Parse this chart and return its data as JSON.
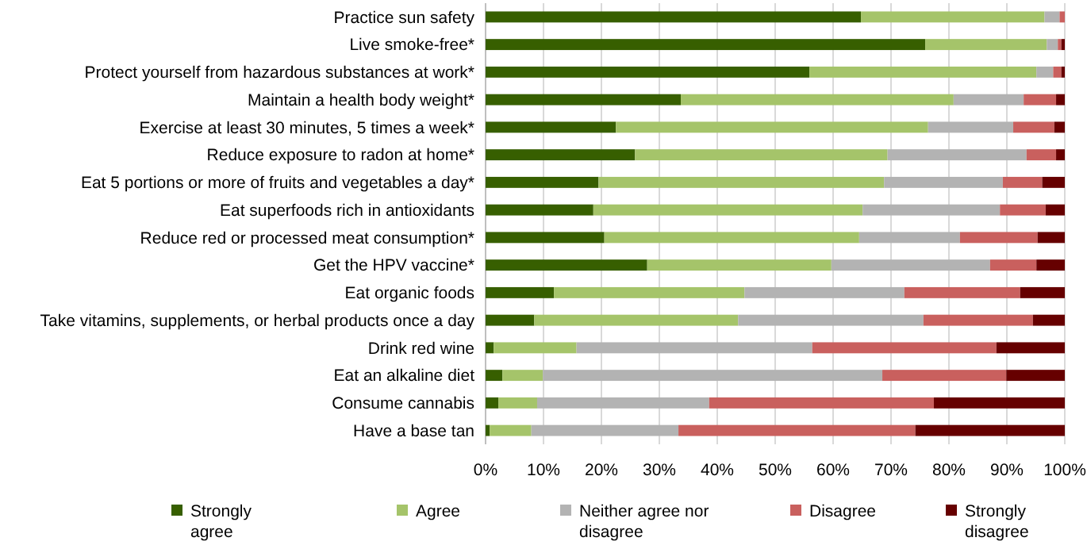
{
  "chart_data": {
    "type": "bar",
    "orientation": "horizontal",
    "stacked": true,
    "categories": [
      "Practice sun safety",
      "Live smoke-free*",
      "Protect yourself from hazardous substances at work*",
      "Maintain a health body weight*",
      "Exercise at least 30 minutes, 5 times a week*",
      "Reduce exposure to radon at home*",
      "Eat 5 portions or more of fruits and vegetables a day*",
      "Eat superfoods rich in antioxidants",
      "Reduce red or processed meat consumption*",
      "Get the HPV vaccine*",
      "Eat organic foods",
      "Take vitamins, supplements, or herbal products once a day",
      "Drink red wine",
      "Eat an alkaline diet",
      "Consume cannabis",
      "Have a base tan"
    ],
    "series": [
      {
        "name": "Strongly agree",
        "color": "#375f00",
        "values": [
          64.8,
          75.9,
          55.9,
          33.7,
          22.5,
          25.8,
          19.5,
          18.6,
          20.5,
          27.9,
          11.8,
          8.4,
          1.4,
          2.9,
          2.2,
          0.7
        ]
      },
      {
        "name": "Agree",
        "color": "#a5c46a",
        "values": [
          31.7,
          21.0,
          39.2,
          47.1,
          53.9,
          43.6,
          49.3,
          46.5,
          44.0,
          31.8,
          32.9,
          35.2,
          14.3,
          7.0,
          6.7,
          7.2
        ]
      },
      {
        "name": "Neither agree nor disagree",
        "color": "#b3b3b3",
        "values": [
          2.6,
          1.9,
          2.9,
          12.1,
          14.7,
          24.0,
          20.5,
          23.7,
          17.4,
          27.4,
          27.6,
          32.0,
          40.7,
          58.6,
          29.7,
          25.4
        ]
      },
      {
        "name": "Disagree",
        "color": "#c9605e",
        "values": [
          0.9,
          0.6,
          1.4,
          5.6,
          7.1,
          5.1,
          6.8,
          7.9,
          13.4,
          8.0,
          20.0,
          18.9,
          31.8,
          21.4,
          38.8,
          40.9
        ]
      },
      {
        "name": "Strongly disagree",
        "color": "#660000",
        "values": [
          0,
          0.6,
          0.6,
          1.5,
          1.8,
          1.5,
          3.9,
          3.3,
          4.7,
          4.9,
          7.7,
          5.5,
          11.8,
          10.1,
          22.6,
          25.8
        ]
      }
    ],
    "xlim": [
      0,
      100
    ],
    "xticks": [
      {
        "value": 0,
        "label": "0%"
      },
      {
        "value": 10,
        "label": "10%"
      },
      {
        "value": 20,
        "label": "20%"
      },
      {
        "value": 30,
        "label": "30%"
      },
      {
        "value": 40,
        "label": "40%"
      },
      {
        "value": 50,
        "label": "50%"
      },
      {
        "value": 60,
        "label": "60%"
      },
      {
        "value": 70,
        "label": "70%"
      },
      {
        "value": 80,
        "label": "80%"
      },
      {
        "value": 90,
        "label": "90%"
      },
      {
        "value": 100,
        "label": "100%"
      }
    ],
    "grid": "x",
    "legend": "bottom"
  }
}
